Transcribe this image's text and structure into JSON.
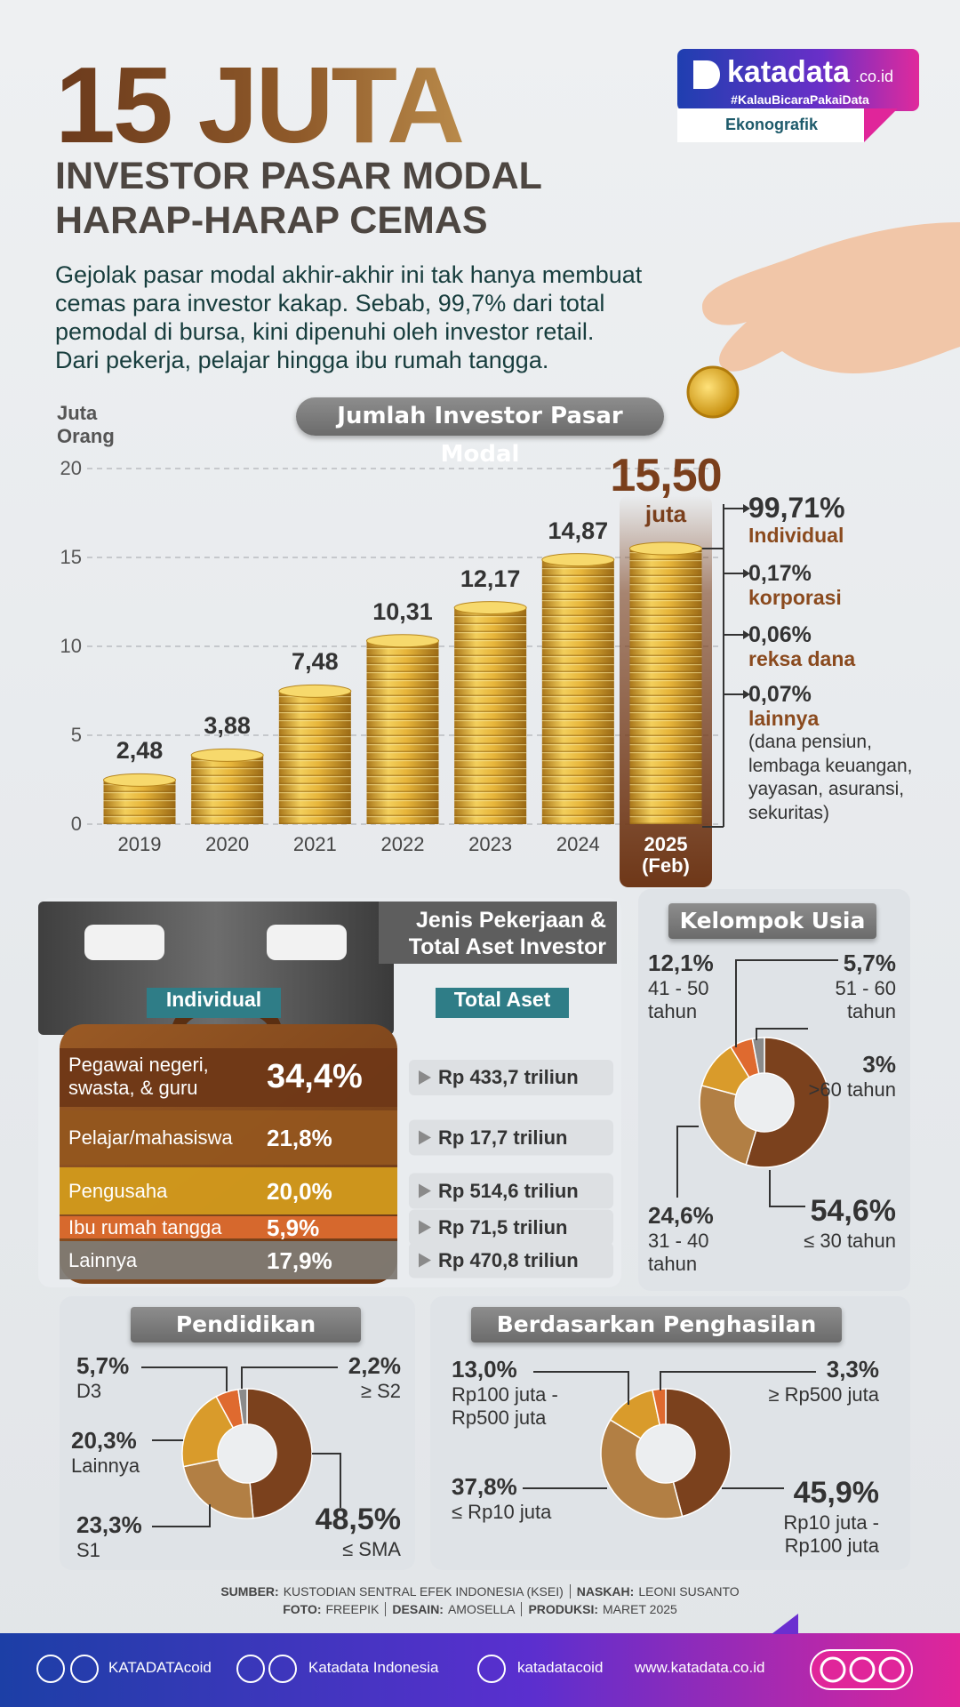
{
  "header": {
    "title": "15 JUTA",
    "subtitle_lines": [
      "INVESTOR PASAR MODAL",
      "HARAP-HARAP CEMAS"
    ],
    "intro_lines": [
      "Gejolak pasar modal akhir-akhir ini tak hanya membuat",
      "cemas para investor kakap. Sebab, 99,7% dari total",
      "pemodal di bursa, kini dipenuhi oleh investor retail.",
      "Dari pekerja, pelajar hingga ibu rumah tangga."
    ]
  },
  "brand": {
    "name": "katadata",
    "domain": ".co.id",
    "tagline": "#KalauBicaraPakaiData",
    "section": "Ekonografik"
  },
  "chart_data": [
    {
      "type": "bar",
      "title": "Jumlah Investor Pasar Modal",
      "y_label": "Juta Orang",
      "categories": [
        "2019",
        "2020",
        "2021",
        "2022",
        "2023",
        "2024",
        "2025 (Feb)"
      ],
      "values": [
        2.48,
        3.88,
        7.48,
        10.31,
        12.17,
        14.87,
        15.5
      ],
      "value_labels": [
        "2,48",
        "3,88",
        "7,48",
        "10,31",
        "12,17",
        "14,87",
        "15,50"
      ],
      "unit_note": "juta",
      "color": "#e2b13a",
      "ylim": [
        0,
        20
      ],
      "yticks": [
        0,
        5,
        10,
        15,
        20
      ],
      "grid": true,
      "annotations": [
        {
          "value": 99.71,
          "label": "99,71%",
          "text": "Individual"
        },
        {
          "value": 0.17,
          "label": "0,17%",
          "text": "korporasi"
        },
        {
          "value": 0.06,
          "label": "0,06%",
          "text": "reksa dana"
        },
        {
          "value": 0.07,
          "label": "0,07%",
          "text": "lainnya"
        }
      ],
      "annotation_note": "(dana pensiun, lembaga keuangan, yayasan, asuransi, sekuritas)"
    },
    {
      "type": "pie",
      "title": "Kelompok Usia",
      "categories": [
        "≤ 30 tahun",
        "31 - 40 tahun",
        "41 - 50 tahun",
        "51 - 60 tahun",
        ">60 tahun"
      ],
      "values": [
        54.6,
        24.6,
        12.1,
        5.7,
        3
      ],
      "value_labels": [
        "54,6%",
        "24,6%",
        "12,1%",
        "5,7%",
        "3%"
      ],
      "colors": [
        "#7b411d",
        "#b27f44",
        "#d99b2b",
        "#df6a2f",
        "#8b8b8b"
      ]
    },
    {
      "type": "pie",
      "title": "Pendidikan",
      "categories": [
        "≤ SMA",
        "S1",
        "Lainnya",
        "D3",
        "≥ S2"
      ],
      "values": [
        48.5,
        23.3,
        20.3,
        5.7,
        2.2
      ],
      "value_labels": [
        "48,5%",
        "23,3%",
        "20,3%",
        "5,7%",
        "2,2%"
      ],
      "colors": [
        "#7b411d",
        "#b27f44",
        "#d99b2b",
        "#df6a2f",
        "#8b8b8b"
      ]
    },
    {
      "type": "pie",
      "title": "Berdasarkan Penghasilan",
      "categories": [
        "Rp10 juta - Rp100 juta",
        "≤ Rp10 juta",
        "Rp100 juta - Rp500 juta",
        "≥ Rp500 juta"
      ],
      "values": [
        45.9,
        37.8,
        13.0,
        3.3
      ],
      "value_labels": [
        "45,9%",
        "37,8%",
        "13,0%",
        "3,3%"
      ],
      "colors": [
        "#7b411d",
        "#b27f44",
        "#d99b2b",
        "#df6a2f"
      ]
    }
  ],
  "occupation": {
    "title_lines": [
      "Jenis Pekerjaan &",
      "Total Aset Investor"
    ],
    "columns": [
      "Individual",
      "Total Aset"
    ],
    "rows": [
      [
        "Pegawai negeri, swasta, & guru",
        "34,4%",
        "Rp 433,7 triliun"
      ],
      [
        "Pelajar/mahasiswa",
        "21,8%",
        "Rp 17,7 triliun"
      ],
      [
        "Pengusaha",
        "20,0%",
        "Rp 514,6 triliun"
      ],
      [
        "Ibu rumah tangga",
        "5,9%",
        "Rp 71,5 triliun"
      ],
      [
        "Lainnya",
        "17,9%",
        "Rp 470,8 triliun"
      ]
    ]
  },
  "footer": {
    "credits": [
      [
        {
          "label": "SUMBER:",
          "text": "KUSTODIAN SENTRAL EFEK INDONESIA (KSEI)"
        },
        {
          "label": "NASKAH:",
          "text": "LEONI SUSANTO"
        }
      ],
      [
        {
          "label": "FOTO:",
          "text": "FREEPIK"
        },
        {
          "label": "DESAIN:",
          "text": "AMOSELLA"
        },
        {
          "label": "PRODUKSI:",
          "text": "MARET 2025"
        }
      ]
    ],
    "social": [
      "KATADATAcoid",
      "Katadata Indonesia",
      "katadatacoid",
      "www.katadata.co.id"
    ]
  }
}
